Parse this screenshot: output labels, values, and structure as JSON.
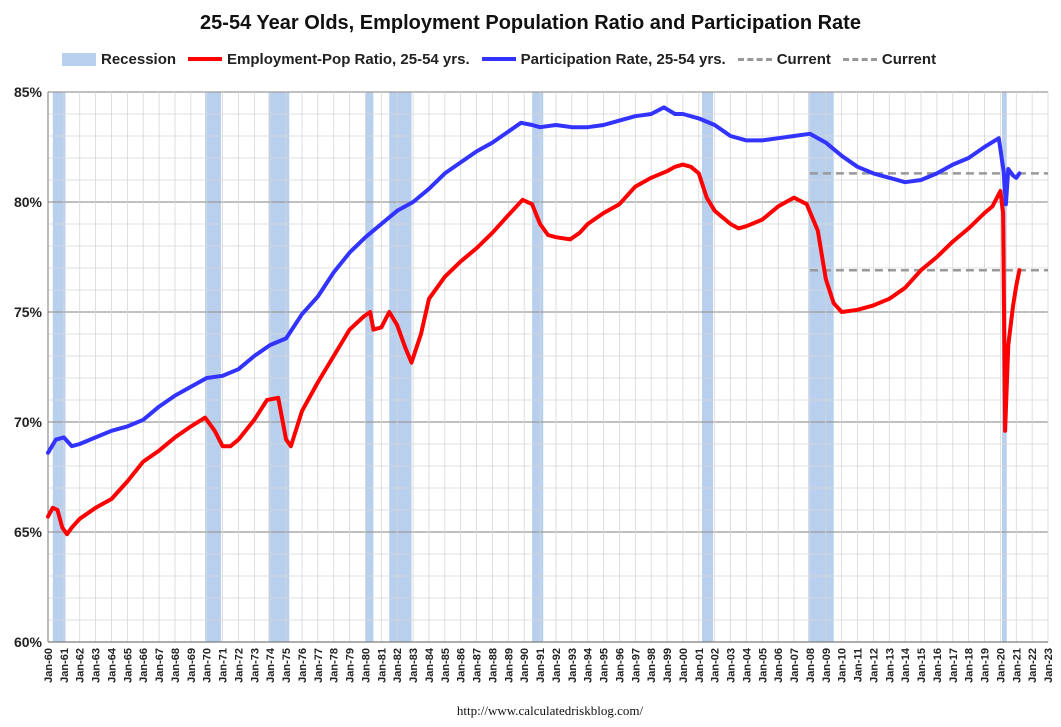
{
  "chart_data": {
    "type": "line",
    "title": "25-54 Year Olds, Employment Population Ratio and Participation Rate",
    "xlabel": "",
    "ylabel": "",
    "xlim": [
      1960.0,
      2023.0
    ],
    "ylim": [
      60,
      85
    ],
    "y_ticks": [
      "60%",
      "65%",
      "70%",
      "75%",
      "80%",
      "85%"
    ],
    "y_tick_values": [
      60,
      65,
      70,
      75,
      80,
      85
    ],
    "x_ticks": [
      "Jan-60",
      "Jan-61",
      "Jan-62",
      "Jan-63",
      "Jan-64",
      "Jan-65",
      "Jan-66",
      "Jan-67",
      "Jan-68",
      "Jan-69",
      "Jan-70",
      "Jan-71",
      "Jan-72",
      "Jan-73",
      "Jan-74",
      "Jan-75",
      "Jan-76",
      "Jan-77",
      "Jan-78",
      "Jan-79",
      "Jan-80",
      "Jan-81",
      "Jan-82",
      "Jan-83",
      "Jan-84",
      "Jan-85",
      "Jan-86",
      "Jan-87",
      "Jan-88",
      "Jan-89",
      "Jan-90",
      "Jan-91",
      "Jan-92",
      "Jan-93",
      "Jan-94",
      "Jan-95",
      "Jan-96",
      "Jan-97",
      "Jan-98",
      "Jan-99",
      "Jan-00",
      "Jan-01",
      "Jan-02",
      "Jan-03",
      "Jan-04",
      "Jan-05",
      "Jan-06",
      "Jan-07",
      "Jan-08",
      "Jan-09",
      "Jan-10",
      "Jan-11",
      "Jan-12",
      "Jan-13",
      "Jan-14",
      "Jan-15",
      "Jan-16",
      "Jan-17",
      "Jan-18",
      "Jan-19",
      "Jan-20",
      "Jan-21",
      "Jan-22",
      "Jan-23"
    ],
    "grid": true,
    "legend_position": "top",
    "recessions": [
      [
        1960.3,
        1961.1
      ],
      [
        1969.9,
        1970.9
      ],
      [
        1973.9,
        1975.2
      ],
      [
        1980.0,
        1980.5
      ],
      [
        1981.5,
        1982.9
      ],
      [
        1990.5,
        1991.2
      ],
      [
        2001.2,
        2001.9
      ],
      [
        2007.9,
        2009.5
      ],
      [
        2020.1,
        2020.4
      ]
    ],
    "series": [
      {
        "name": "Employment-Pop Ratio, 25-54 yrs.",
        "color": "#ff0000",
        "x": [
          1960.0,
          1960.3,
          1960.6,
          1960.9,
          1961.2,
          1961.5,
          1962.0,
          1963.0,
          1964.0,
          1965.0,
          1966.0,
          1967.0,
          1968.0,
          1969.0,
          1969.9,
          1970.5,
          1971.0,
          1971.5,
          1972.0,
          1973.0,
          1973.8,
          1974.5,
          1975.0,
          1975.3,
          1976.0,
          1977.0,
          1978.0,
          1979.0,
          1979.9,
          1980.3,
          1980.5,
          1981.0,
          1981.5,
          1982.0,
          1982.5,
          1982.9,
          1983.5,
          1984.0,
          1985.0,
          1986.0,
          1987.0,
          1988.0,
          1989.0,
          1989.9,
          1990.5,
          1991.0,
          1991.5,
          1992.0,
          1992.9,
          1993.5,
          1994.0,
          1995.0,
          1996.0,
          1997.0,
          1998.0,
          1999.0,
          1999.5,
          2000.0,
          2000.5,
          2001.0,
          2001.5,
          2002.0,
          2003.0,
          2003.5,
          2004.0,
          2005.0,
          2006.0,
          2007.0,
          2007.8,
          2008.5,
          2009.0,
          2009.5,
          2010.0,
          2011.0,
          2012.0,
          2013.0,
          2014.0,
          2015.0,
          2016.0,
          2017.0,
          2018.0,
          2019.0,
          2019.5,
          2020.0,
          2020.17,
          2020.3,
          2020.5,
          2020.8,
          2021.0,
          2021.2
        ],
        "values": [
          65.7,
          66.1,
          66.0,
          65.2,
          64.9,
          65.2,
          65.6,
          66.1,
          66.5,
          67.3,
          68.2,
          68.7,
          69.3,
          69.8,
          70.2,
          69.6,
          68.9,
          68.9,
          69.2,
          70.1,
          71.0,
          71.1,
          69.2,
          68.9,
          70.5,
          71.8,
          73.0,
          74.2,
          74.8,
          75.0,
          74.2,
          74.3,
          75.0,
          74.4,
          73.4,
          72.7,
          74.0,
          75.6,
          76.6,
          77.3,
          77.9,
          78.6,
          79.4,
          80.1,
          79.9,
          79.0,
          78.5,
          78.4,
          78.3,
          78.6,
          79.0,
          79.5,
          79.9,
          80.7,
          81.1,
          81.4,
          81.6,
          81.7,
          81.6,
          81.3,
          80.2,
          79.6,
          79.0,
          78.8,
          78.9,
          79.2,
          79.8,
          80.2,
          79.9,
          78.7,
          76.5,
          75.4,
          75.0,
          75.1,
          75.3,
          75.6,
          76.1,
          76.9,
          77.5,
          78.2,
          78.8,
          79.5,
          79.8,
          80.5,
          79.5,
          69.6,
          73.5,
          75.3,
          76.2,
          76.9
        ]
      },
      {
        "name": "Participation Rate, 25-54 yrs.",
        "color": "#3333ff",
        "x": [
          1960.0,
          1960.5,
          1961.0,
          1961.5,
          1962.0,
          1963.0,
          1964.0,
          1965.0,
          1966.0,
          1967.0,
          1968.0,
          1969.0,
          1970.0,
          1971.0,
          1972.0,
          1973.0,
          1974.0,
          1975.0,
          1976.0,
          1977.0,
          1978.0,
          1979.0,
          1980.0,
          1981.0,
          1982.0,
          1983.0,
          1984.0,
          1985.0,
          1986.0,
          1987.0,
          1988.0,
          1989.0,
          1989.8,
          1990.5,
          1991.0,
          1992.0,
          1993.0,
          1994.0,
          1995.0,
          1996.0,
          1997.0,
          1998.0,
          1998.8,
          1999.5,
          2000.0,
          2001.0,
          2002.0,
          2003.0,
          2004.0,
          2005.0,
          2006.0,
          2007.0,
          2008.0,
          2009.0,
          2010.0,
          2011.0,
          2012.0,
          2013.0,
          2014.0,
          2015.0,
          2016.0,
          2017.0,
          2018.0,
          2019.0,
          2019.9,
          2020.2,
          2020.35,
          2020.5,
          2020.8,
          2021.0,
          2021.2
        ],
        "values": [
          68.6,
          69.2,
          69.3,
          68.9,
          69.0,
          69.3,
          69.6,
          69.8,
          70.1,
          70.7,
          71.2,
          71.6,
          72.0,
          72.1,
          72.4,
          73.0,
          73.5,
          73.8,
          74.9,
          75.7,
          76.8,
          77.7,
          78.4,
          79.0,
          79.6,
          80.0,
          80.6,
          81.3,
          81.8,
          82.3,
          82.7,
          83.2,
          83.6,
          83.5,
          83.4,
          83.5,
          83.4,
          83.4,
          83.5,
          83.7,
          83.9,
          84.0,
          84.3,
          84.0,
          84.0,
          83.8,
          83.5,
          83.0,
          82.8,
          82.8,
          82.9,
          83.0,
          83.1,
          82.7,
          82.1,
          81.6,
          81.3,
          81.1,
          80.9,
          81.0,
          81.3,
          81.7,
          82.0,
          82.5,
          82.9,
          81.4,
          79.9,
          81.5,
          81.2,
          81.1,
          81.3
        ]
      }
    ],
    "current_lines": [
      {
        "name": "Current",
        "value": 81.3,
        "x_start": 2008.0,
        "x_end": 2023.0,
        "color": "#999999"
      },
      {
        "name": "Current",
        "value": 76.9,
        "x_start": 2008.0,
        "x_end": 2023.0,
        "color": "#999999"
      }
    ],
    "legend": {
      "recession": {
        "label": "Recession",
        "color": "#b8d0ee"
      },
      "epop": {
        "label": "Employment-Pop Ratio, 25-54 yrs.",
        "color": "#ff0000"
      },
      "lfpr": {
        "label": "Participation Rate, 25-54 yrs.",
        "color": "#3333ff"
      },
      "current1": {
        "label": "Current",
        "color": "#999999"
      },
      "current2": {
        "label": "Current",
        "color": "#999999"
      }
    }
  },
  "source_note": "http://www.calculatedriskblog.com/"
}
